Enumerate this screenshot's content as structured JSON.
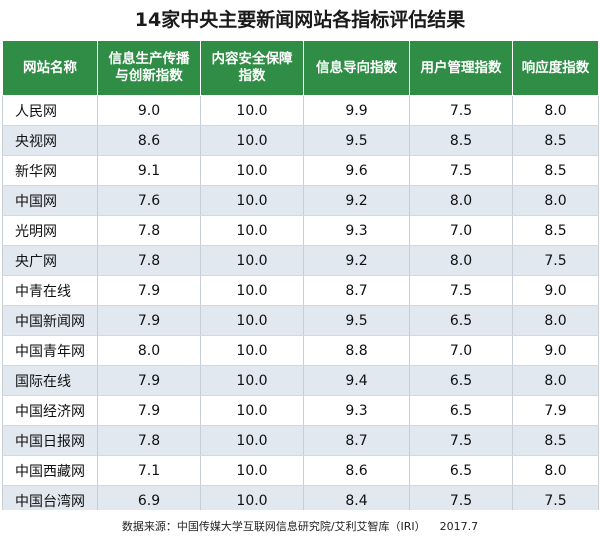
{
  "title": "14家中央主要新闻网站各指标评估结果",
  "source": "数据来源：中国传媒大学互联网信息研究院/艾利艾智库（IRI）",
  "date": "2017.7",
  "chart_data": {
    "type": "table",
    "title": "14家中央主要新闻网站各指标评估结果",
    "columns": [
      "网站名称",
      "信息生产传播与创新指数",
      "内容安全保障指数",
      "信息导向指数",
      "用户管理指数",
      "响应度指数"
    ],
    "rows": [
      [
        "人民网",
        "9.0",
        "10.0",
        "9.9",
        "7.5",
        "8.0"
      ],
      [
        "央视网",
        "8.6",
        "10.0",
        "9.5",
        "8.5",
        "8.5"
      ],
      [
        "新华网",
        "9.1",
        "10.0",
        "9.6",
        "7.5",
        "8.5"
      ],
      [
        "中国网",
        "7.6",
        "10.0",
        "9.2",
        "8.0",
        "8.0"
      ],
      [
        "光明网",
        "7.8",
        "10.0",
        "9.3",
        "7.0",
        "8.5"
      ],
      [
        "央广网",
        "7.8",
        "10.0",
        "9.2",
        "8.0",
        "7.5"
      ],
      [
        "中青在线",
        "7.9",
        "10.0",
        "8.7",
        "7.5",
        "9.0"
      ],
      [
        "中国新闻网",
        "7.9",
        "10.0",
        "9.5",
        "6.5",
        "8.0"
      ],
      [
        "中国青年网",
        "8.0",
        "10.0",
        "8.8",
        "7.0",
        "9.0"
      ],
      [
        "国际在线",
        "7.9",
        "10.0",
        "9.4",
        "6.5",
        "8.0"
      ],
      [
        "中国经济网",
        "7.9",
        "10.0",
        "9.3",
        "6.5",
        "7.9"
      ],
      [
        "中国日报网",
        "7.8",
        "10.0",
        "8.7",
        "7.5",
        "8.5"
      ],
      [
        "中国西藏网",
        "7.1",
        "10.0",
        "8.6",
        "6.5",
        "8.0"
      ],
      [
        "中国台湾网",
        "6.9",
        "10.0",
        "8.4",
        "7.5",
        "7.5"
      ]
    ]
  },
  "colors": {
    "header_bg": "#2f8d45",
    "header_text": "#ffffff",
    "row_stripe": "#e2e8ef",
    "row_plain": "#ffffff"
  }
}
